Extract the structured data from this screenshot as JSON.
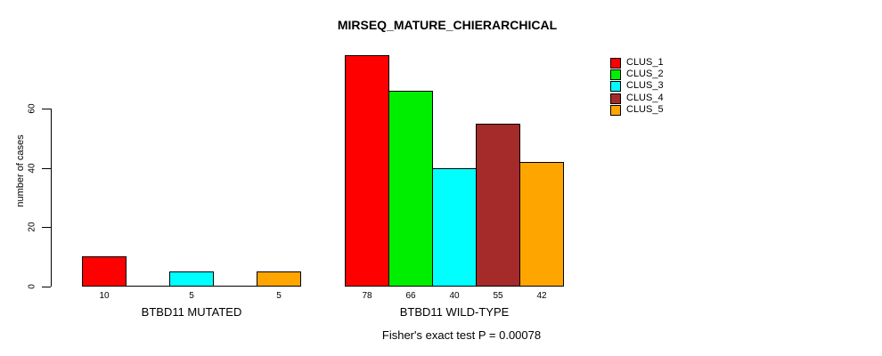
{
  "figure": {
    "title": "MIRSEQ_MATURE_CHIERARCHICAL",
    "footer": "Fisher's exact test P = 0.00078"
  },
  "chart_data": {
    "type": "bar",
    "title": "MIRSEQ_MATURE_CHIERARCHICAL",
    "xlabel": "",
    "ylabel": "number of cases",
    "ylim": [
      0,
      60
    ],
    "yticks": [
      0,
      20,
      40,
      60
    ],
    "grid": false,
    "legend_position": "top-right",
    "categories": [
      "BTBD11 MUTATED",
      "BTBD11 WILD-TYPE"
    ],
    "series": [
      {
        "name": "CLUS_1",
        "color": "#FF0000",
        "values": [
          10,
          78
        ]
      },
      {
        "name": "CLUS_2",
        "color": "#00EE00",
        "values": [
          0,
          66
        ]
      },
      {
        "name": "CLUS_3",
        "color": "#00FFFF",
        "values": [
          5,
          40
        ]
      },
      {
        "name": "CLUS_4",
        "color": "#A52A2A",
        "values": [
          0,
          55
        ]
      },
      {
        "name": "CLUS_5",
        "color": "#FFA500",
        "values": [
          5,
          42
        ]
      }
    ],
    "bar_value_labels": {
      "BTBD11 MUTATED": [
        "10",
        "",
        "5",
        "",
        "5"
      ],
      "BTBD11 WILD-TYPE": [
        "78",
        "66",
        "40",
        "55",
        "42"
      ]
    },
    "annotation": "Fisher's exact test P = 0.00078"
  }
}
